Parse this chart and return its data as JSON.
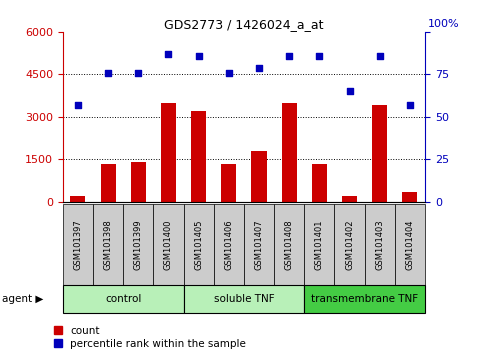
{
  "title": "GDS2773 / 1426024_a_at",
  "samples": [
    "GSM101397",
    "GSM101398",
    "GSM101399",
    "GSM101400",
    "GSM101405",
    "GSM101406",
    "GSM101407",
    "GSM101408",
    "GSM101401",
    "GSM101402",
    "GSM101403",
    "GSM101404"
  ],
  "counts": [
    200,
    1350,
    1400,
    3500,
    3200,
    1350,
    1800,
    3500,
    1350,
    200,
    3400,
    350
  ],
  "percentiles": [
    57,
    76,
    76,
    87,
    86,
    76,
    79,
    86,
    86,
    65,
    86,
    57
  ],
  "group_configs": [
    {
      "label": "control",
      "start": 0,
      "end": 3,
      "color": "#b8f0b8"
    },
    {
      "label": "soluble TNF",
      "start": 4,
      "end": 7,
      "color": "#b8f0b8"
    },
    {
      "label": "transmembrane TNF",
      "start": 8,
      "end": 11,
      "color": "#44cc44"
    }
  ],
  "bar_color": "#CC0000",
  "dot_color": "#0000BB",
  "ylim_left": [
    0,
    6000
  ],
  "ylim_right": [
    0,
    100
  ],
  "yticks_left": [
    0,
    1500,
    3000,
    4500,
    6000
  ],
  "yticks_right": [
    0,
    25,
    50,
    75,
    100
  ],
  "grid_values": [
    1500,
    3000,
    4500
  ],
  "left_axis_color": "#CC0000",
  "right_axis_color": "#0000BB",
  "legend_count_label": "count",
  "legend_pct_label": "percentile rank within the sample",
  "background_color": "#ffffff",
  "tick_label_area_color": "#cccccc",
  "group_border_color": "#000000"
}
